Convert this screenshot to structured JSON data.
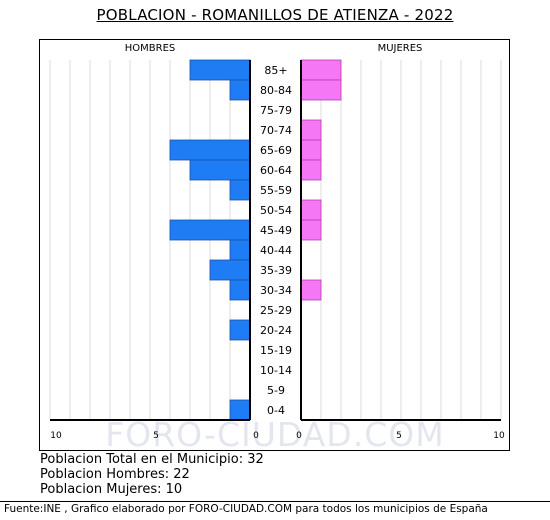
{
  "chart_data": {
    "type": "population-pyramid",
    "title": "POBLACION - ROMANILLOS DE ATIENZA - 2022",
    "left_label": "HOMBRES",
    "right_label": "MUJERES",
    "categories": [
      "85+",
      "80-84",
      "75-79",
      "70-74",
      "65-69",
      "60-64",
      "55-59",
      "50-54",
      "45-49",
      "40-44",
      "35-39",
      "30-34",
      "25-29",
      "20-24",
      "15-19",
      "10-14",
      "5-9",
      "0-4"
    ],
    "series": [
      {
        "name": "HOMBRES",
        "color": "#1e7df5",
        "values": [
          3,
          1,
          0,
          0,
          4,
          3,
          1,
          0,
          4,
          1,
          2,
          1,
          0,
          1,
          0,
          0,
          0,
          1
        ]
      },
      {
        "name": "MUJERES",
        "color": "#f577f5",
        "values": [
          2,
          2,
          0,
          1,
          1,
          1,
          0,
          1,
          1,
          0,
          0,
          1,
          0,
          0,
          0,
          0,
          0,
          0
        ]
      }
    ],
    "left_ticks": [
      "10",
      "5",
      "0"
    ],
    "right_ticks": [
      "0",
      "5",
      "10"
    ],
    "xlim": [
      0,
      10
    ],
    "grid": true
  },
  "watermark": "FORO-CIUDAD.COM",
  "stats": {
    "total": "Poblacion Total en el Municipio: 32",
    "men": "Poblacion Hombres: 22",
    "women": "Poblacion Mujeres: 10"
  },
  "footer": "Fuente:INE , Grafico elaborado por FORO-CIUDAD.COM para todos los municipios de España"
}
